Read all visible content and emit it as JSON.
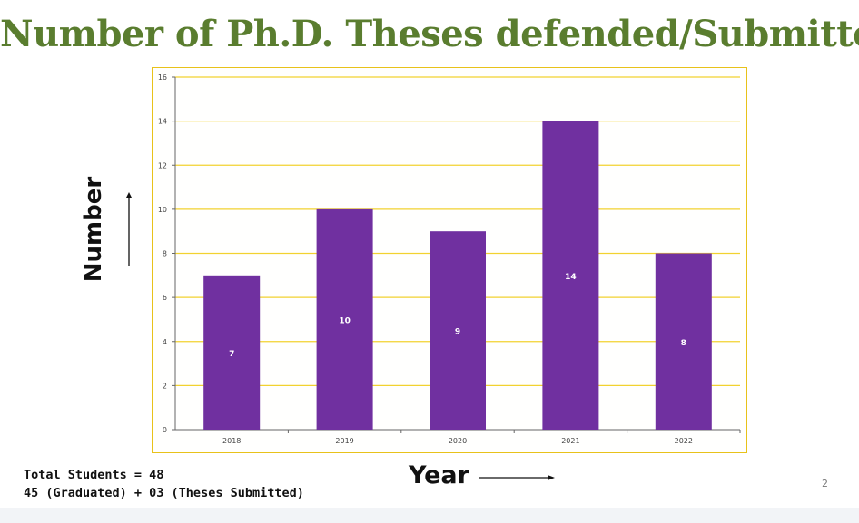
{
  "title": "Number of Ph.D. Theses defended/Submitted",
  "ylabel": "Number",
  "xlabel": "Year",
  "notes": {
    "line1": "Total Students = 48",
    "line2": "45 (Graduated) + 03 (Theses Submitted)"
  },
  "page_number": "2",
  "colors": {
    "title": "#5a7d2f",
    "bar": "#7030a0",
    "gridline": "#f2d230",
    "frame": "#e8c21a"
  },
  "chart_data": {
    "type": "bar",
    "categories": [
      "2018",
      "2019",
      "2020",
      "2021",
      "2022"
    ],
    "values": [
      7,
      10,
      9,
      14,
      8
    ],
    "data_labels": [
      "7",
      "10",
      "9",
      "14",
      "8"
    ],
    "ylim": [
      0,
      16
    ],
    "yticks": [
      "0",
      "2",
      "4",
      "6",
      "8",
      "10",
      "12",
      "14",
      "16"
    ],
    "grid": true
  }
}
